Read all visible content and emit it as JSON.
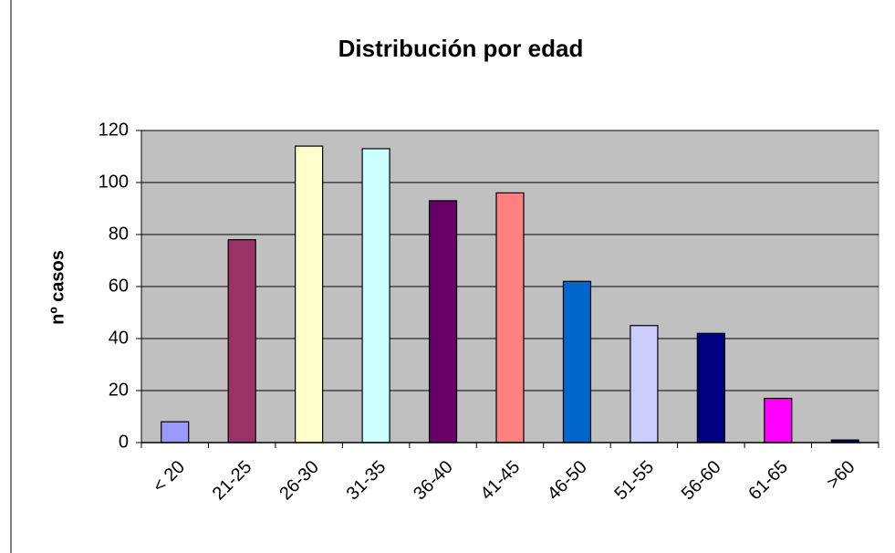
{
  "chart_data": {
    "type": "bar",
    "title": "Distribución por edad",
    "y_label": "nº casos",
    "categories": [
      "< 20",
      "21-25",
      "26-30",
      "31-35",
      "36-40",
      "41-45",
      "46-50",
      "51-55",
      "56-60",
      "61-65",
      ">60"
    ],
    "values": [
      8,
      78,
      114,
      113,
      93,
      96,
      62,
      45,
      42,
      17,
      1
    ],
    "colors": [
      "#9999ff",
      "#993366",
      "#ffffcc",
      "#ccffff",
      "#660066",
      "#ff8080",
      "#0066cc",
      "#ccccff",
      "#000080",
      "#ff00ff",
      "#000080"
    ],
    "ylim": [
      0,
      120
    ],
    "yticks": [
      0,
      20,
      40,
      60,
      80,
      100,
      120
    ],
    "grid": true
  }
}
